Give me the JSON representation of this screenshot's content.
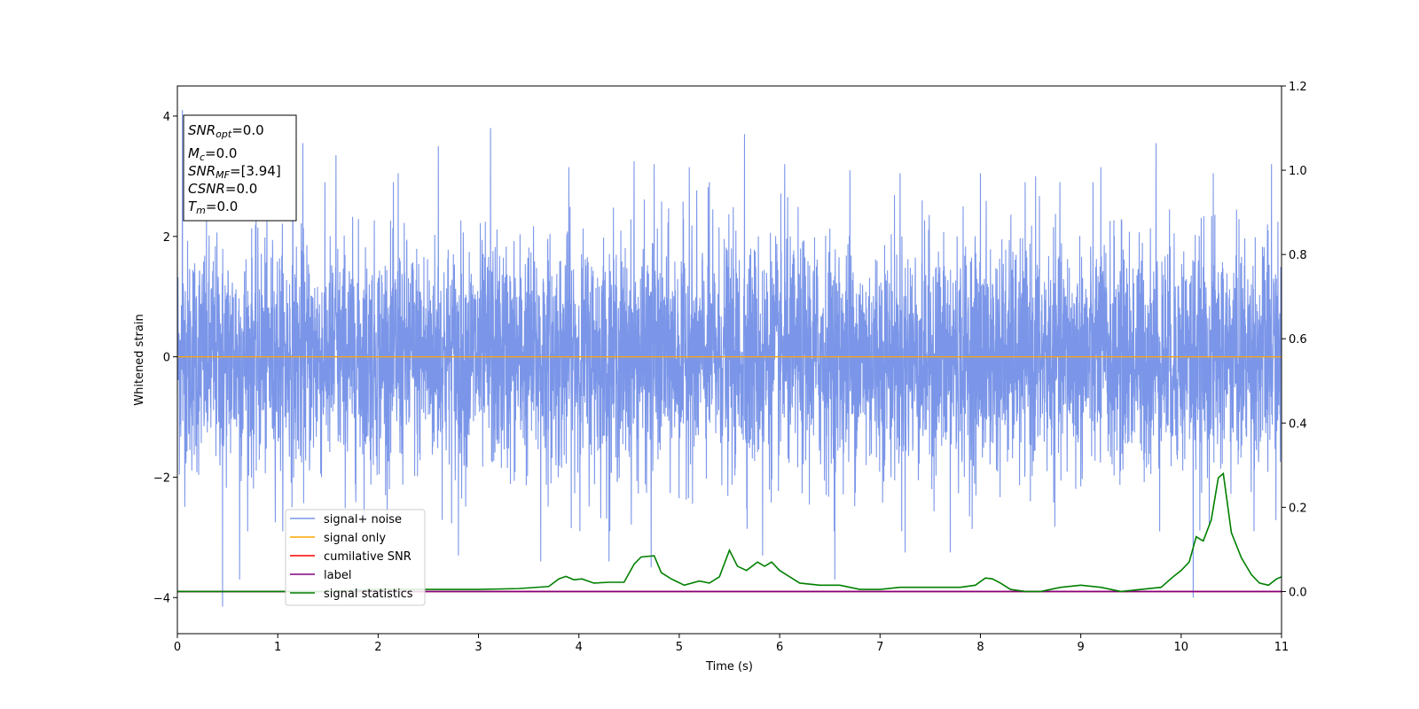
{
  "chart_data": {
    "type": "line",
    "xlabel": "Time (s)",
    "ylabel": "Whitened strain",
    "xlim": [
      0,
      11
    ],
    "ylim": [
      -4.6,
      4.5
    ],
    "y2lim": [
      -0.1,
      1.2
    ],
    "x_ticks": [
      "0",
      "1",
      "2",
      "3",
      "4",
      "5",
      "6",
      "7",
      "8",
      "9",
      "10",
      "11"
    ],
    "y_ticks": [
      "-4",
      "-2",
      "0",
      "2",
      "4"
    ],
    "y2_ticks": [
      "0.0",
      "0.2",
      "0.4",
      "0.6",
      "0.8",
      "1.0",
      "1.2"
    ],
    "grid": false,
    "legend_position": "lower-left",
    "info_box": {
      "snr_opt": {
        "symbol": "SNR",
        "sub": "opt",
        "value": "=0.0"
      },
      "mc": {
        "symbol": "M",
        "sub": "c",
        "value": "=0.0"
      },
      "snr_mf": {
        "symbol": "SNR",
        "sub": "MF",
        "value": "=[3.94]"
      },
      "csnr": {
        "symbol": "CSNR",
        "value": "=0.0"
      },
      "tm": {
        "symbol": "T",
        "sub": "m",
        "value": "=0.0"
      }
    },
    "series": [
      {
        "name": "signal+ noise",
        "color": "#7b96e8",
        "axis": "left",
        "description_level": "noise band spanning roughly -2 to 2 with spikes up to 4.1 and down to -4.2",
        "spikes": [
          [
            0.05,
            4.1
          ],
          [
            0.45,
            -4.15
          ],
          [
            0.62,
            -3.7
          ],
          [
            1.15,
            3.4
          ],
          [
            1.25,
            3.55
          ],
          [
            1.58,
            3.35
          ],
          [
            2.2,
            3.05
          ],
          [
            2.6,
            3.5
          ],
          [
            2.8,
            -3.3
          ],
          [
            3.12,
            3.8
          ],
          [
            3.62,
            -3.4
          ],
          [
            3.9,
            3.15
          ],
          [
            4.3,
            -3.4
          ],
          [
            4.55,
            3.25
          ],
          [
            4.75,
            3.2
          ],
          [
            4.72,
            -3.5
          ],
          [
            5.1,
            3.15
          ],
          [
            5.3,
            2.9
          ],
          [
            5.65,
            3.7
          ],
          [
            5.83,
            -3.3
          ],
          [
            6.05,
            3.2
          ],
          [
            6.55,
            -3.7
          ],
          [
            6.7,
            3.1
          ],
          [
            7.2,
            3.05
          ],
          [
            7.25,
            -3.25
          ],
          [
            7.7,
            -3.25
          ],
          [
            8.0,
            3.05
          ],
          [
            8.55,
            3.0
          ],
          [
            9.2,
            3.15
          ],
          [
            9.75,
            3.55
          ],
          [
            10.12,
            -4.0
          ],
          [
            10.32,
            3.05
          ],
          [
            10.9,
            3.2
          ]
        ]
      },
      {
        "name": "signal only",
        "color": "#ffa500",
        "axis": "left",
        "x": [
          0,
          11
        ],
        "y": [
          0,
          0
        ]
      },
      {
        "name": "cumilative SNR",
        "color": "#ff0000",
        "axis": "right",
        "x": [
          0,
          11
        ],
        "y": [
          0,
          0
        ]
      },
      {
        "name": "label",
        "color": "#800080",
        "axis": "right",
        "x": [
          0,
          11
        ],
        "y": [
          0,
          0
        ]
      },
      {
        "name": "signal statistics",
        "color": "#008000",
        "axis": "right",
        "x": [
          0,
          0.5,
          1.0,
          1.5,
          2.0,
          2.5,
          3.0,
          3.4,
          3.7,
          3.8,
          3.87,
          3.95,
          4.03,
          4.15,
          4.3,
          4.45,
          4.55,
          4.62,
          4.75,
          4.82,
          4.92,
          5.05,
          5.2,
          5.3,
          5.4,
          5.5,
          5.58,
          5.67,
          5.78,
          5.85,
          5.92,
          6.0,
          6.2,
          6.4,
          6.6,
          6.8,
          7.0,
          7.2,
          7.4,
          7.6,
          7.8,
          7.95,
          8.05,
          8.12,
          8.2,
          8.3,
          8.45,
          8.6,
          8.8,
          9.0,
          9.2,
          9.4,
          9.6,
          9.8,
          9.92,
          10.0,
          10.08,
          10.15,
          10.22,
          10.3,
          10.37,
          10.42,
          10.5,
          10.6,
          10.7,
          10.78,
          10.87,
          10.95,
          11.0
        ],
        "y": [
          0.0,
          0.0,
          0.0,
          0.0,
          0.005,
          0.005,
          0.005,
          0.007,
          0.012,
          0.03,
          0.036,
          0.028,
          0.03,
          0.02,
          0.022,
          0.022,
          0.065,
          0.082,
          0.085,
          0.045,
          0.03,
          0.015,
          0.025,
          0.02,
          0.035,
          0.098,
          0.06,
          0.05,
          0.07,
          0.06,
          0.07,
          0.05,
          0.02,
          0.015,
          0.015,
          0.005,
          0.005,
          0.01,
          0.01,
          0.01,
          0.01,
          0.015,
          0.032,
          0.03,
          0.02,
          0.005,
          0.0,
          0.0,
          0.01,
          0.015,
          0.01,
          0.0,
          0.005,
          0.01,
          0.035,
          0.05,
          0.07,
          0.13,
          0.12,
          0.17,
          0.27,
          0.28,
          0.14,
          0.08,
          0.04,
          0.02,
          0.015,
          0.03,
          0.035
        ]
      }
    ]
  }
}
